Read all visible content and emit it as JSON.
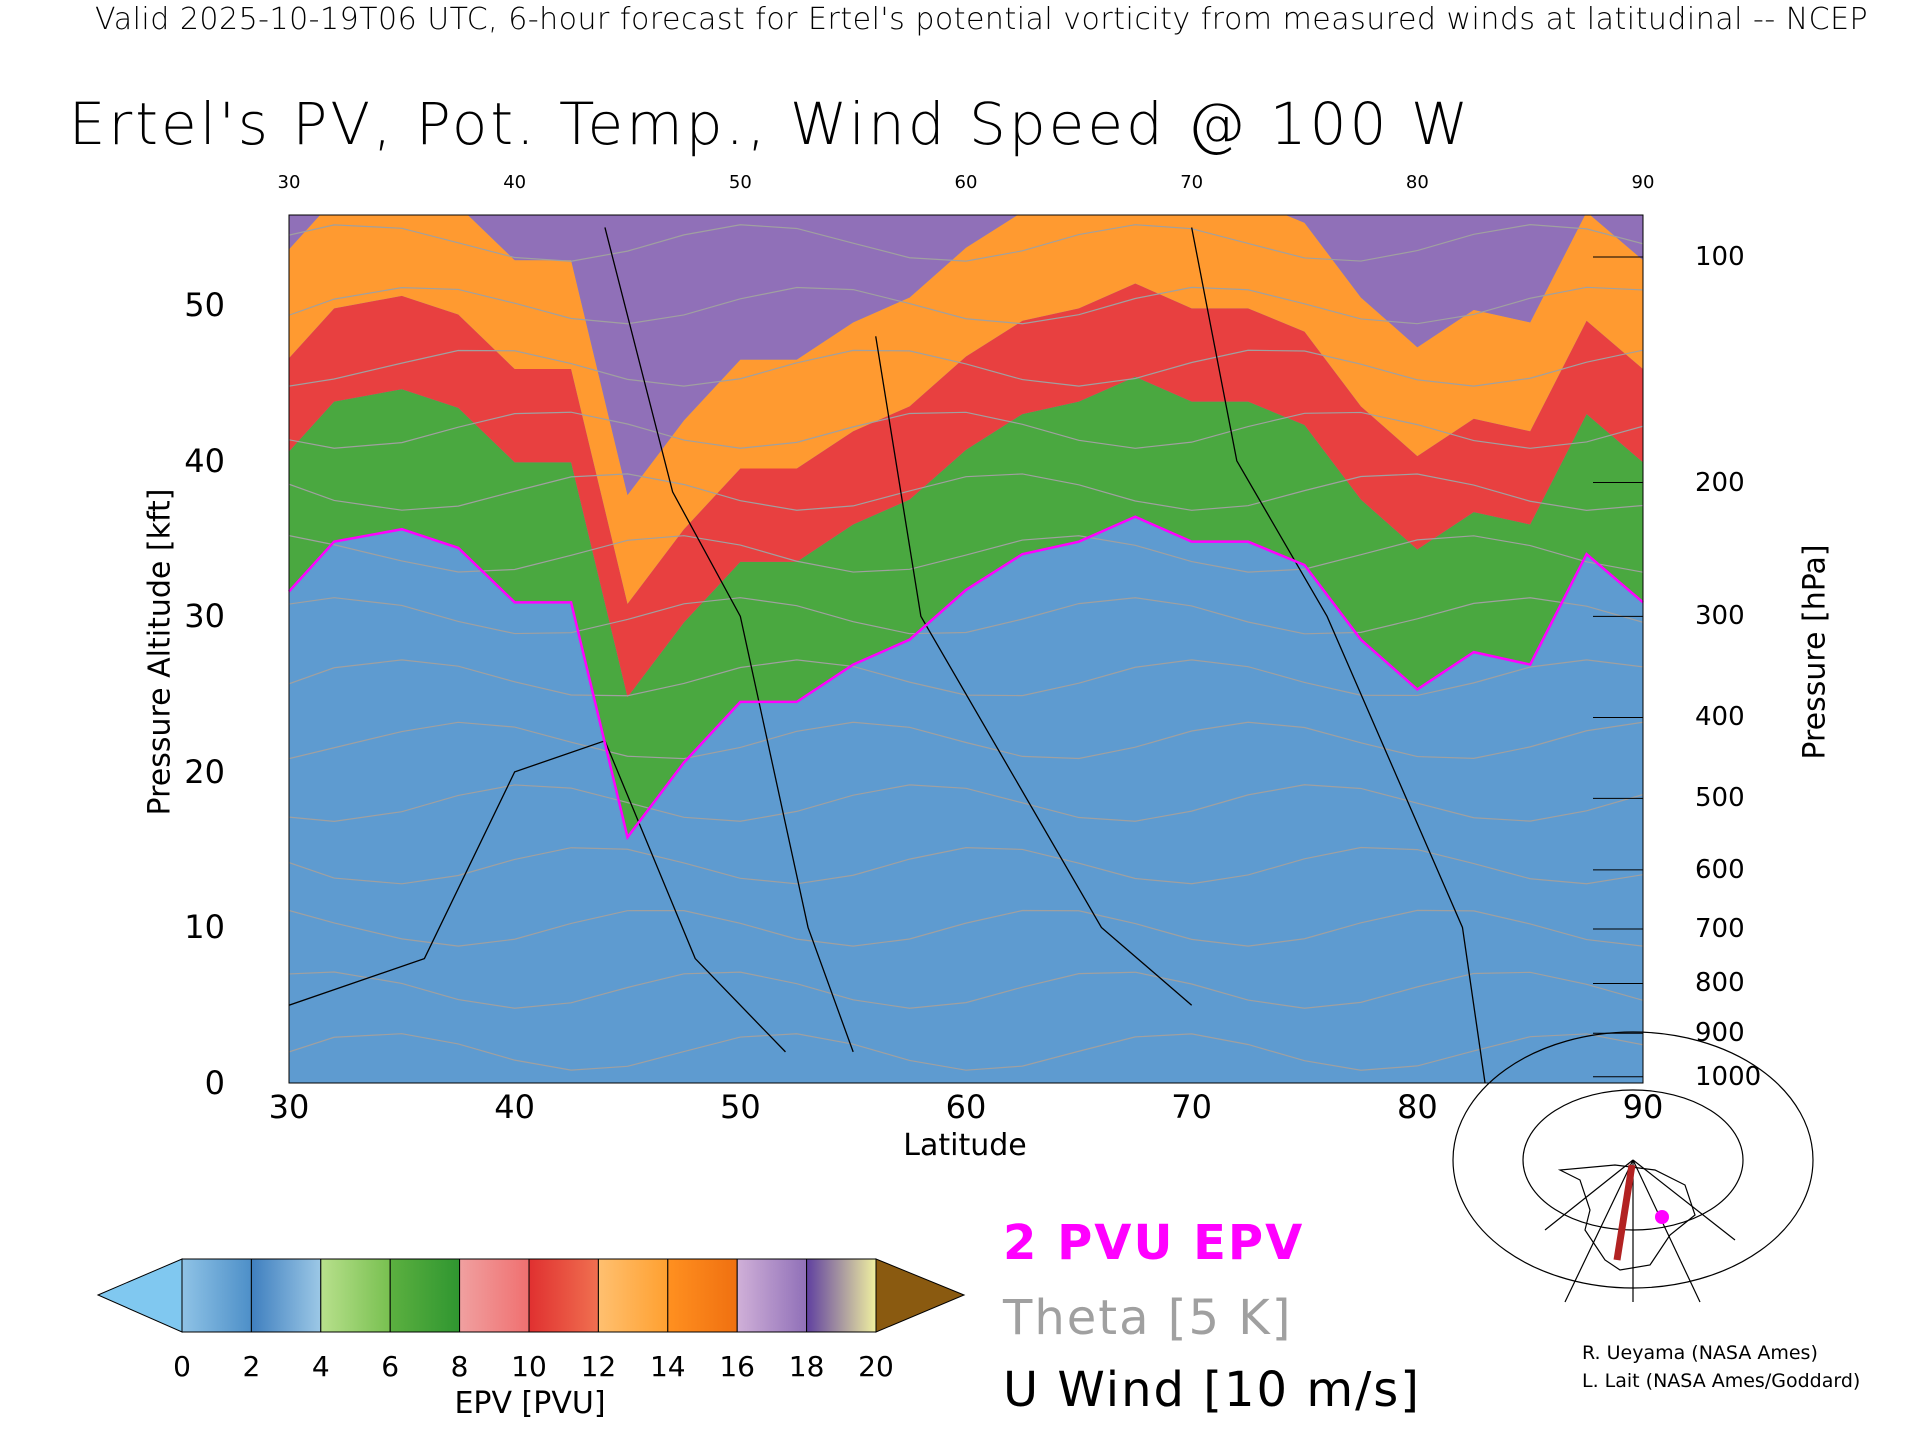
{
  "header": {
    "subtitle": "Valid 2025-10-19T06 UTC, 6-hour forecast for Ertel's potential vorticity from measured winds at latitudinal -- NCEP",
    "title": "Ertel's PV, Pot. Temp., Wind Speed @ 100 W"
  },
  "chart_data": {
    "type": "heatmap",
    "title": "Ertel's PV, Pot. Temp., Wind Speed @ 100 W",
    "xlabel": "Latitude",
    "ylabel_left": "Pressure Altitude [kft]",
    "ylabel_right": "Pressure [hPa]",
    "xlim": [
      30,
      90
    ],
    "ylim": [
      0,
      55.8
    ],
    "x_ticks": [
      "30",
      "40",
      "50",
      "60",
      "70",
      "80",
      "90"
    ],
    "y_ticks": [
      "0",
      "10",
      "20",
      "30",
      "40",
      "50"
    ],
    "pressure_ticks": [
      {
        "label": "100",
        "kft": 53.1
      },
      {
        "label": "200",
        "kft": 38.6
      },
      {
        "label": "300",
        "kft": 30.0
      },
      {
        "label": "400",
        "kft": 23.5
      },
      {
        "label": "500",
        "kft": 18.3
      },
      {
        "label": "600",
        "kft": 13.7
      },
      {
        "label": "700",
        "kft": 9.9
      },
      {
        "label": "800",
        "kft": 6.4
      },
      {
        "label": "900",
        "kft": 3.2
      },
      {
        "label": "1000",
        "kft": 0.4
      }
    ],
    "tropopause_2pvu": {
      "lat": [
        30,
        32,
        35,
        37.5,
        40,
        42.5,
        45,
        47.5,
        50,
        52.5,
        55,
        57.5,
        60,
        62.5,
        65,
        67.5,
        70,
        72.5,
        75,
        77.5,
        80,
        82.5,
        85,
        87.5,
        90
      ],
      "kft": [
        31.6,
        34.8,
        35.6,
        34.4,
        30.9,
        30.9,
        15.8,
        20.6,
        24.5,
        24.5,
        26.9,
        28.5,
        31.7,
        34,
        34.8,
        36.4,
        34.8,
        34.8,
        33.3,
        28.5,
        25.3,
        27.7,
        26.9,
        34,
        30.9
      ]
    },
    "colorbar": {
      "label": "EPV [PVU]",
      "ticks": [
        "0",
        "2",
        "4",
        "6",
        "8",
        "10",
        "12",
        "14",
        "16",
        "18",
        "20"
      ],
      "bins": [
        [
          "#8fc3e6",
          "#4d8fc8"
        ],
        [
          "#3f7fbf",
          "#9cc8e6"
        ],
        [
          "#b8e08c",
          "#78c050"
        ],
        [
          "#5cb040",
          "#2f9630"
        ],
        [
          "#f0a0a0",
          "#f07070"
        ],
        [
          "#e03030",
          "#f07050"
        ],
        [
          "#ffc070",
          "#ffa030"
        ],
        [
          "#ff9020",
          "#f07010"
        ],
        [
          "#d0b0d8",
          "#9070b8"
        ],
        [
          "#6040a0",
          "#f0f0a0"
        ]
      ],
      "under_color": "#80c8f0",
      "over_color": "#8a5a10"
    },
    "legend": [
      {
        "label": "2 PVU EPV",
        "color": "#ff00ff"
      },
      {
        "label": "Theta [5 K]",
        "color": "#a0a0a0"
      },
      {
        "label": "U Wind [10 m/s]",
        "color": "#000000"
      }
    ]
  },
  "credits": [
    "R. Ueyama (NASA Ames)",
    "L. Lait (NASA Ames/Goddard)"
  ]
}
